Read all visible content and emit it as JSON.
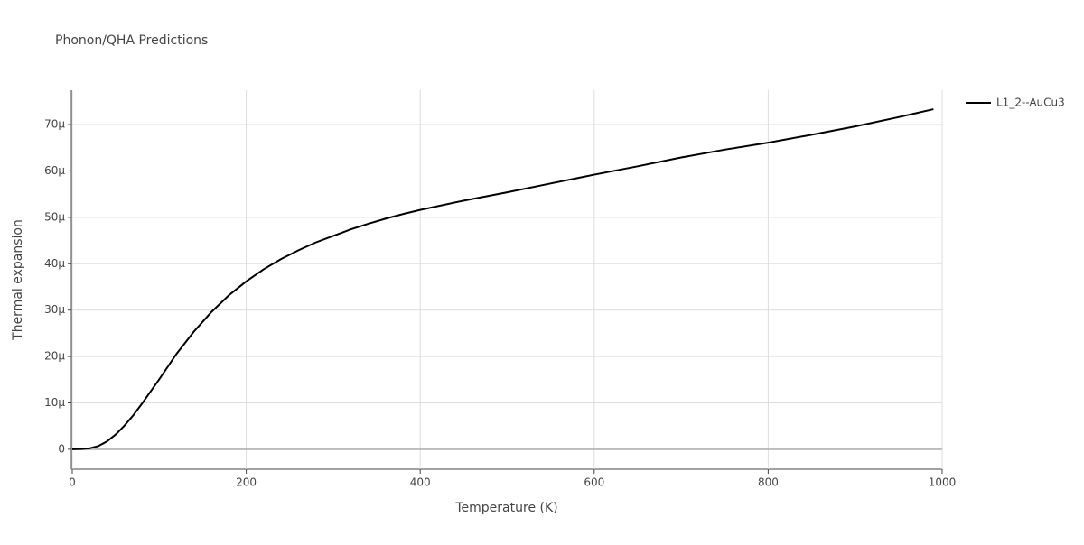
{
  "chart_data": {
    "type": "line",
    "title": "Phonon/QHA Predictions",
    "x_label": "Temperature (K)",
    "y_label": "Thermal expansion",
    "x": [
      0,
      10,
      20,
      30,
      40,
      50,
      60,
      70,
      80,
      100,
      120,
      140,
      160,
      180,
      200,
      220,
      240,
      260,
      280,
      300,
      320,
      340,
      360,
      380,
      400,
      450,
      500,
      550,
      600,
      650,
      700,
      750,
      800,
      850,
      900,
      950,
      990
    ],
    "series": [
      {
        "name": "L1_2--AuCu3",
        "color": "#000000",
        "values": [
          0,
          5e-08,
          2e-07,
          7e-07,
          1.7e-06,
          3.2e-06,
          5.1e-06,
          7.3e-06,
          9.8e-06,
          1.51e-05,
          2.06e-05,
          2.54e-05,
          2.96e-05,
          3.32e-05,
          3.62e-05,
          3.88e-05,
          4.1e-05,
          4.29e-05,
          4.46e-05,
          4.6e-05,
          4.74e-05,
          4.86e-05,
          4.97e-05,
          5.07e-05,
          5.16e-05,
          5.36e-05,
          5.54e-05,
          5.73e-05,
          5.92e-05,
          6.1e-05,
          6.29e-05,
          6.46e-05,
          6.61e-05,
          6.78e-05,
          6.96e-05,
          7.16e-05,
          7.33e-05
        ]
      }
    ],
    "xlim": [
      0,
      1000
    ],
    "xticks": [
      0,
      200,
      400,
      600,
      800,
      1000
    ],
    "ylim": [
      -4.3e-06,
      7.74e-05
    ],
    "yticks": [
      0,
      {
        "value": 1e-05,
        "label": "10μ"
      },
      {
        "value": 2e-05,
        "label": "20μ"
      },
      {
        "value": 3e-05,
        "label": "30μ"
      },
      {
        "value": 4e-05,
        "label": "40μ"
      },
      {
        "value": 5e-05,
        "label": "50μ"
      },
      {
        "value": 6e-05,
        "label": "60μ"
      },
      {
        "value": 7e-05,
        "label": "70μ"
      }
    ],
    "grid": true,
    "legend": "top-right"
  }
}
